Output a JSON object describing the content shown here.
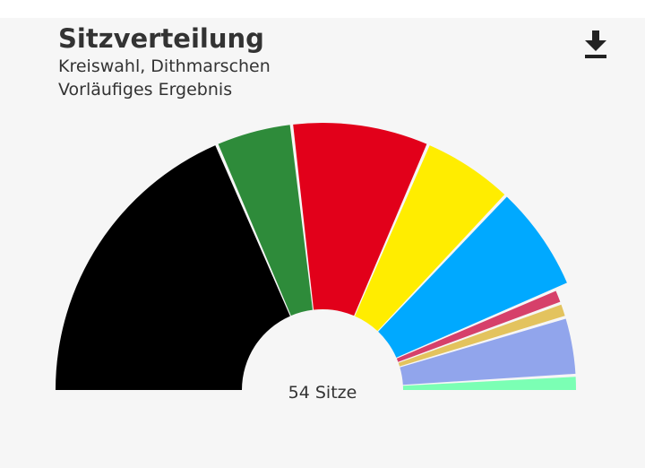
{
  "header": {
    "title": "Sitzverteilung",
    "subtitle_1": "Kreiswahl, Dithmarschen",
    "subtitle_2": "Vorläufiges Ergebnis"
  },
  "icons": {
    "download": "download-icon"
  },
  "chart_data": {
    "type": "pie",
    "variant": "parliament-semicircle",
    "title": "Sitzverteilung",
    "total_label": "54 Sitze",
    "total_seats": 54,
    "series": [
      {
        "seats": 20,
        "color": "#000000"
      },
      {
        "seats": 5,
        "color": "#2e8b3a"
      },
      {
        "seats": 9,
        "color": "#e2001a"
      },
      {
        "seats": 6,
        "color": "#ffed00"
      },
      {
        "seats": 7,
        "color": "#00a9ff"
      },
      {
        "seats": 1,
        "color": "#d6406a"
      },
      {
        "seats": 1,
        "color": "#e3c35e"
      },
      {
        "seats": 4,
        "color": "#91a5ec"
      },
      {
        "seats": 1,
        "color": "#7bffb4"
      }
    ]
  }
}
